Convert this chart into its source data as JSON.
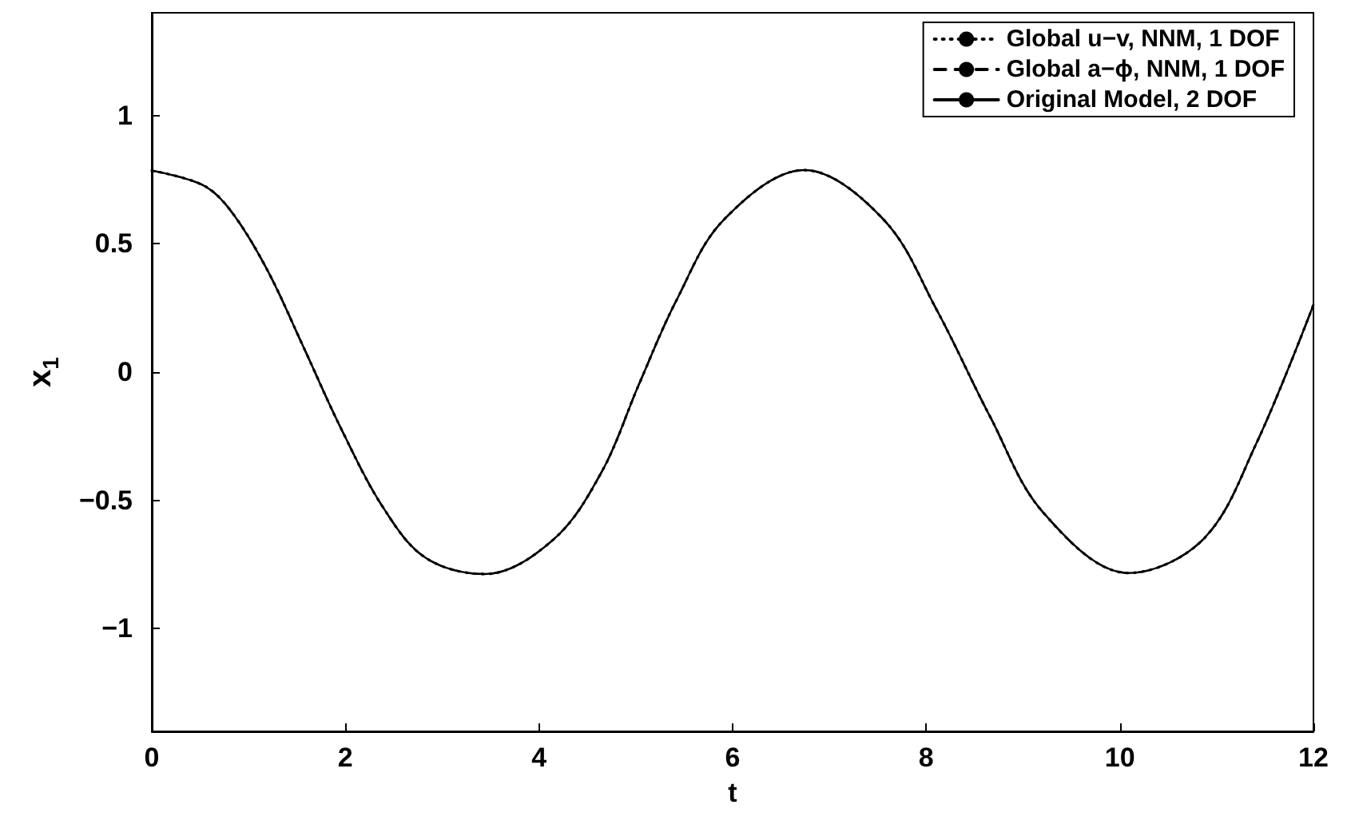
{
  "chart_data": {
    "type": "line",
    "xlabel": "t",
    "ylabel": "x$_{1}$",
    "xlim": [
      0,
      12
    ],
    "xticks": [
      0,
      2,
      4,
      6,
      8,
      10,
      12
    ],
    "ylim": [
      -1.4,
      1.4
    ],
    "yticks": [
      -1,
      -0.5,
      0,
      0.5,
      1
    ],
    "x": [
      0,
      0.52,
      0.8,
      1.18,
      1.57,
      1.95,
      2.39,
      2.83,
      3.44,
      4.15,
      4.65,
      5.03,
      5.42,
      5.91,
      6.74,
      7.56,
      8.11,
      8.66,
      9.21,
      10.09,
      10.86,
      11.41,
      12
    ],
    "series": [
      {
        "name": "Global u−v, NNM, 1 DOF",
        "color": "#000000",
        "line_style": "dotted",
        "values": [
          0.785,
          0.73,
          0.636,
          0.407,
          0.095,
          -0.216,
          -0.528,
          -0.724,
          -0.787,
          -0.652,
          -0.387,
          -0.05,
          0.28,
          0.594,
          0.787,
          0.594,
          0.241,
          -0.174,
          -0.548,
          -0.783,
          -0.652,
          -0.278,
          0.262
        ]
      },
      {
        "name": "Global a−ϕ, NNM, 1 DOF",
        "color": "#000000",
        "line_style": "dashed",
        "values": [
          0.785,
          0.73,
          0.636,
          0.407,
          0.095,
          -0.216,
          -0.528,
          -0.724,
          -0.787,
          -0.652,
          -0.387,
          -0.05,
          0.28,
          0.594,
          0.787,
          0.594,
          0.241,
          -0.174,
          -0.548,
          -0.783,
          -0.652,
          -0.278,
          0.262
        ]
      },
      {
        "name": "Original Model, 2 DOF",
        "color": "#000000",
        "line_style": "solid",
        "values": [
          0.785,
          0.73,
          0.636,
          0.407,
          0.095,
          -0.216,
          -0.528,
          -0.724,
          -0.787,
          -0.652,
          -0.387,
          -0.05,
          0.28,
          0.594,
          0.787,
          0.594,
          0.241,
          -0.174,
          -0.548,
          -0.783,
          -0.652,
          -0.278,
          0.262
        ]
      }
    ],
    "grid": false,
    "legend": "top right",
    "marker": "none"
  }
}
